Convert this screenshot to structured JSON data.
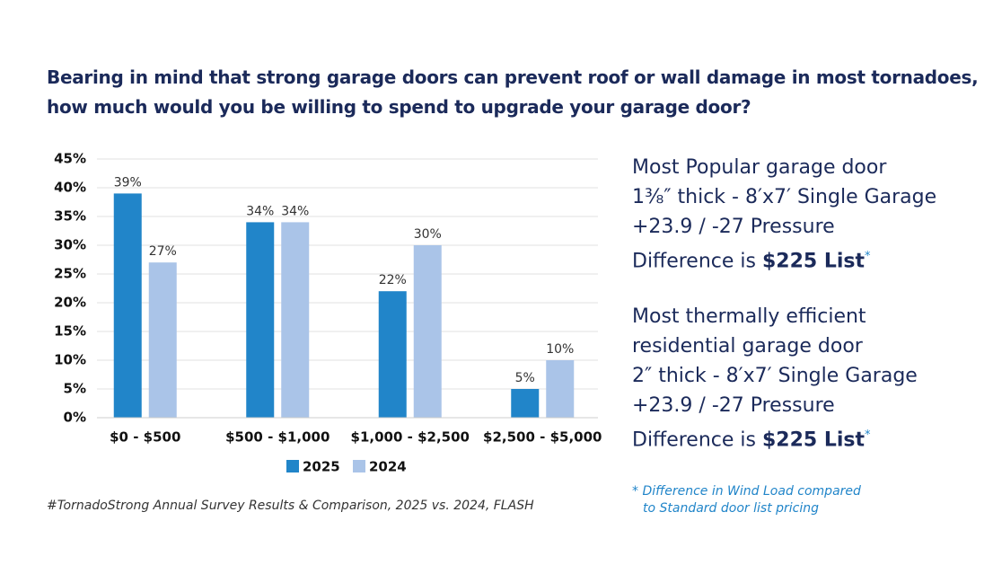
{
  "chart_data": {
    "type": "bar",
    "title_lines": [
      "Bearing in mind that strong garage doors can prevent roof or wall damage in most tornadoes,",
      "how much would you be willing to spend to upgrade your garage door?"
    ],
    "categories": [
      "$0 - $500",
      "$500 - $1,000",
      "$1,000 - $2,500",
      "$2,500 - $5,000"
    ],
    "series": [
      {
        "name": "2025",
        "color": "#2185c9",
        "values": [
          39,
          34,
          22,
          5
        ],
        "value_labels": [
          "39%",
          "34%",
          "22%",
          "5%"
        ]
      },
      {
        "name": "2024",
        "color": "#aac4e8",
        "values": [
          27,
          34,
          30,
          10
        ],
        "value_labels": [
          "27%",
          "34%",
          "30%",
          "10%"
        ]
      }
    ],
    "ylim": [
      0,
      45
    ],
    "yticks": [
      {
        "value": 0,
        "label": "0%"
      },
      {
        "value": 5,
        "label": "5%"
      },
      {
        "value": 10,
        "label": "10%"
      },
      {
        "value": 15,
        "label": "15%"
      },
      {
        "value": 20,
        "label": "20%"
      },
      {
        "value": 25,
        "label": "25%"
      },
      {
        "value": 30,
        "label": "30%"
      },
      {
        "value": 35,
        "label": "35%"
      },
      {
        "value": 40,
        "label": "40%"
      },
      {
        "value": 45,
        "label": "45%"
      }
    ],
    "grid": true,
    "legend": "bottom",
    "source": "#TornadoStrong Annual Survey Results & Comparison, 2025 vs. 2024, FLASH"
  },
  "notes": [
    {
      "lines": [
        "Most Popular garage door",
        "1⅜″ thick - 8′x7′ Single Garage",
        "+23.9 / -27 Pressure"
      ],
      "last": "Difference is ",
      "price": "$225 List",
      "mark": "*"
    },
    {
      "lines": [
        "Most thermally efficient",
        "residential garage door",
        "2″ thick - 8′x7′ Single Garage",
        "+23.9 / -27 Pressure"
      ],
      "last": "Difference is ",
      "price": "$225 List",
      "mark": "*"
    }
  ],
  "footnote": [
    "* Difference in Wind Load compared",
    "to Standard door list pricing"
  ]
}
